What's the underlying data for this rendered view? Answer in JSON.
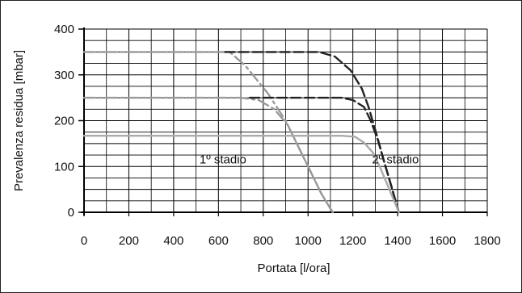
{
  "chart_data": {
    "type": "line",
    "xlabel": "Portata [l/ora]",
    "ylabel": "Prevalenza residua [mbar]",
    "xlim": [
      0,
      1800
    ],
    "ylim": [
      0,
      400
    ],
    "x_ticks": [
      0,
      200,
      400,
      600,
      800,
      1000,
      1200,
      1400,
      1600,
      1800
    ],
    "y_ticks": [
      0,
      100,
      200,
      300,
      400
    ],
    "grid": true,
    "annotations": [
      {
        "text": "1º stadio",
        "x": 620,
        "y": 115
      },
      {
        "text": "2º stadio",
        "x": 1390,
        "y": 115
      }
    ],
    "series": [
      {
        "color": "#999999",
        "style": "dashdot",
        "points": [
          [
            0,
            350
          ],
          [
            650,
            350
          ],
          [
            720,
            320
          ],
          [
            820,
            260
          ],
          [
            900,
            200
          ],
          [
            960,
            140
          ],
          [
            1010,
            90
          ],
          [
            1060,
            40
          ],
          [
            1110,
            0
          ]
        ]
      },
      {
        "color": "#999999",
        "style": "dashdot",
        "points": [
          [
            0,
            250
          ],
          [
            700,
            250
          ],
          [
            780,
            245
          ],
          [
            850,
            225
          ],
          [
            910,
            190
          ],
          [
            960,
            140
          ],
          [
            1010,
            90
          ],
          [
            1060,
            40
          ],
          [
            1110,
            0
          ]
        ]
      },
      {
        "color": "#222222",
        "style": "dashed",
        "points": [
          [
            630,
            350
          ],
          [
            1050,
            350
          ],
          [
            1120,
            340
          ],
          [
            1190,
            310
          ],
          [
            1240,
            270
          ],
          [
            1270,
            230
          ],
          [
            1300,
            180
          ],
          [
            1340,
            110
          ],
          [
            1370,
            60
          ],
          [
            1405,
            0
          ]
        ]
      },
      {
        "color": "#222222",
        "style": "dashed",
        "points": [
          [
            740,
            250
          ],
          [
            1150,
            250
          ],
          [
            1200,
            245
          ],
          [
            1250,
            230
          ],
          [
            1280,
            200
          ],
          [
            1310,
            160
          ],
          [
            1340,
            110
          ],
          [
            1370,
            60
          ],
          [
            1405,
            0
          ]
        ]
      },
      {
        "color": "#aaaaaa",
        "style": "solid",
        "points": [
          [
            0,
            167
          ],
          [
            1150,
            167
          ],
          [
            1210,
            165
          ],
          [
            1250,
            152
          ],
          [
            1290,
            130
          ],
          [
            1320,
            100
          ],
          [
            1350,
            65
          ],
          [
            1380,
            30
          ],
          [
            1405,
            0
          ]
        ]
      }
    ]
  }
}
